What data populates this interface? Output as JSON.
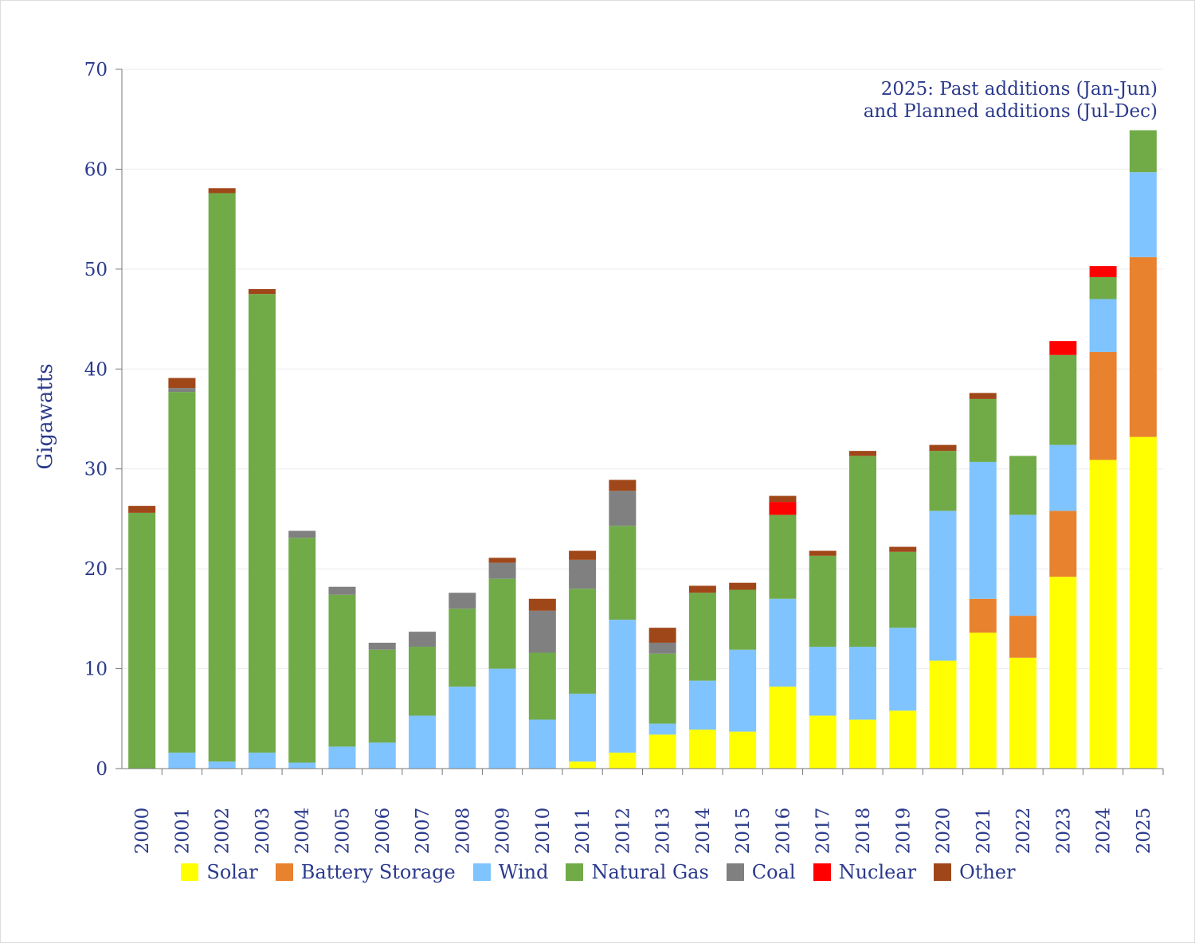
{
  "chart_data": {
    "type": "bar",
    "stacked": true,
    "title": "",
    "xlabel": "",
    "ylabel": "Gigawatts",
    "ylim": [
      0,
      70
    ],
    "yticks": [
      0,
      10,
      20,
      30,
      40,
      50,
      60,
      70
    ],
    "grid": true,
    "legend_position": "bottom",
    "annotation": [
      "2025: Past additions (Jan-Jun)",
      "and Planned additions (Jul-Dec)"
    ],
    "categories": [
      "2000",
      "2001",
      "2002",
      "2003",
      "2004",
      "2005",
      "2006",
      "2007",
      "2008",
      "2009",
      "2010",
      "2011",
      "2012",
      "2013",
      "2014",
      "2015",
      "2016",
      "2017",
      "2018",
      "2019",
      "2020",
      "2021",
      "2022",
      "2023",
      "2024",
      "2025"
    ],
    "series": [
      {
        "name": "Solar",
        "color": "#ffff00",
        "values": [
          0,
          0,
          0,
          0,
          0,
          0,
          0,
          0,
          0,
          0,
          0,
          0.7,
          1.6,
          3.4,
          3.9,
          3.7,
          8.2,
          5.3,
          4.9,
          5.8,
          10.8,
          13.6,
          11.1,
          19.2,
          30.9,
          33.2
        ]
      },
      {
        "name": "Battery Storage",
        "color": "#e8822f",
        "values": [
          0,
          0,
          0,
          0,
          0,
          0,
          0,
          0,
          0,
          0,
          0,
          0,
          0,
          0,
          0,
          0,
          0,
          0,
          0,
          0,
          0,
          3.4,
          4.2,
          6.6,
          10.8,
          18.0
        ]
      },
      {
        "name": "Wind",
        "color": "#80c4ff",
        "values": [
          0,
          1.6,
          0.7,
          1.6,
          0.6,
          2.2,
          2.6,
          5.3,
          8.2,
          10.0,
          4.9,
          6.8,
          13.3,
          1.1,
          4.9,
          8.2,
          8.8,
          6.9,
          7.3,
          8.3,
          15.0,
          13.7,
          10.1,
          6.6,
          5.3,
          8.5
        ]
      },
      {
        "name": "Natural Gas",
        "color": "#70ab48",
        "values": [
          25.6,
          36.1,
          56.9,
          45.9,
          22.5,
          15.2,
          9.3,
          6.9,
          7.8,
          9.0,
          6.7,
          10.5,
          9.4,
          7.0,
          8.8,
          6.0,
          8.4,
          9.1,
          19.1,
          7.6,
          6.0,
          6.3,
          5.9,
          9.0,
          2.2,
          4.2
        ]
      },
      {
        "name": "Coal",
        "color": "#808080",
        "values": [
          0,
          0.4,
          0,
          0,
          0.7,
          0.8,
          0.7,
          1.5,
          1.6,
          1.6,
          4.2,
          2.9,
          3.5,
          1.1,
          0,
          0,
          0,
          0,
          0,
          0,
          0,
          0,
          0,
          0,
          0,
          0
        ]
      },
      {
        "name": "Nuclear",
        "color": "#ff0000",
        "values": [
          0,
          0,
          0,
          0,
          0,
          0,
          0,
          0,
          0,
          0,
          0,
          0,
          0,
          0,
          0,
          0,
          1.3,
          0,
          0,
          0,
          0,
          0,
          0,
          1.4,
          1.1,
          0
        ]
      },
      {
        "name": "Other",
        "color": "#a0471a",
        "values": [
          0.7,
          1.0,
          0.5,
          0.5,
          0,
          0,
          0,
          0,
          0,
          0.5,
          1.2,
          0.9,
          1.1,
          1.5,
          0.7,
          0.7,
          0.6,
          0.5,
          0.5,
          0.5,
          0.6,
          0.6,
          0,
          0,
          0,
          0
        ]
      }
    ]
  }
}
